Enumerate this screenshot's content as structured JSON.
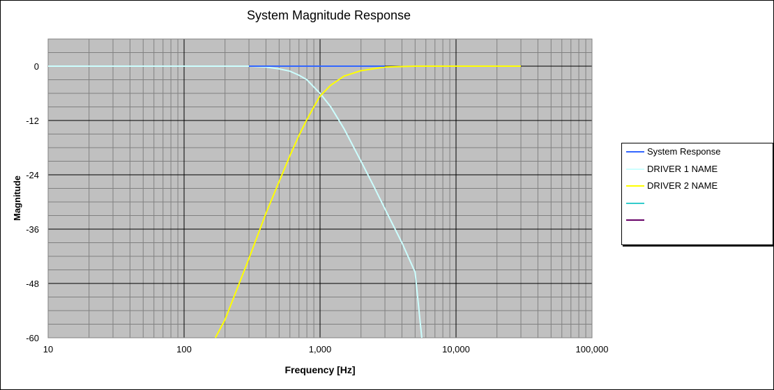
{
  "chart_data": {
    "type": "line",
    "title": "System Magnitude Response",
    "xlabel": "Frequency [Hz]",
    "ylabel": "Magnitude",
    "xscale": "log",
    "xlim": [
      10,
      100000
    ],
    "ylim": [
      -60,
      6
    ],
    "x_ticks": [
      10,
      100,
      1000,
      10000,
      100000
    ],
    "x_tick_labels": [
      "10",
      "100",
      "1,000",
      "10,000",
      "100,000"
    ],
    "y_ticks": [
      0,
      -12,
      -24,
      -36,
      -48,
      -60
    ],
    "y_tick_labels": [
      "0",
      "-12",
      "-24",
      "-36",
      "-48",
      "-60"
    ],
    "grid": true,
    "plot_background": "#c0c0c0",
    "legend_position": "right",
    "series": [
      {
        "name": "System Response",
        "color": "#3366ff",
        "x": [
          300,
          500,
          1000,
          2000,
          3000
        ],
        "y": [
          0,
          0,
          0,
          0,
          0
        ]
      },
      {
        "name": "DRIVER 1 NAME",
        "color": "#ccffff",
        "x": [
          10,
          100,
          300,
          400,
          500,
          600,
          700,
          800,
          900,
          1000,
          1200,
          1500,
          2000,
          2500,
          3000,
          4000,
          5000,
          5600
        ],
        "y": [
          0,
          0,
          0,
          -0.2,
          -0.6,
          -1.1,
          -2.0,
          -3.0,
          -4.6,
          -6.0,
          -9.0,
          -13.8,
          -21.0,
          -26.7,
          -31.5,
          -39.0,
          -45.5,
          -60
        ]
      },
      {
        "name": "DRIVER 2 NAME",
        "color": "#ffff00",
        "x": [
          170,
          200,
          300,
          400,
          500,
          600,
          700,
          800,
          900,
          1000,
          1200,
          1500,
          2000,
          3000,
          5000,
          10000,
          30000
        ],
        "y": [
          -60,
          -56,
          -42.5,
          -32.5,
          -25.5,
          -19.8,
          -15.3,
          -11.8,
          -9.0,
          -6.6,
          -4.2,
          -2.2,
          -1.0,
          -0.2,
          0,
          0,
          0
        ]
      },
      {
        "name": "",
        "color": "#33cccc",
        "x": [],
        "y": []
      },
      {
        "name": "",
        "color": "#660066",
        "x": [],
        "y": []
      },
      {
        "name": "",
        "color": "#ffffff",
        "x": [],
        "y": []
      }
    ]
  }
}
